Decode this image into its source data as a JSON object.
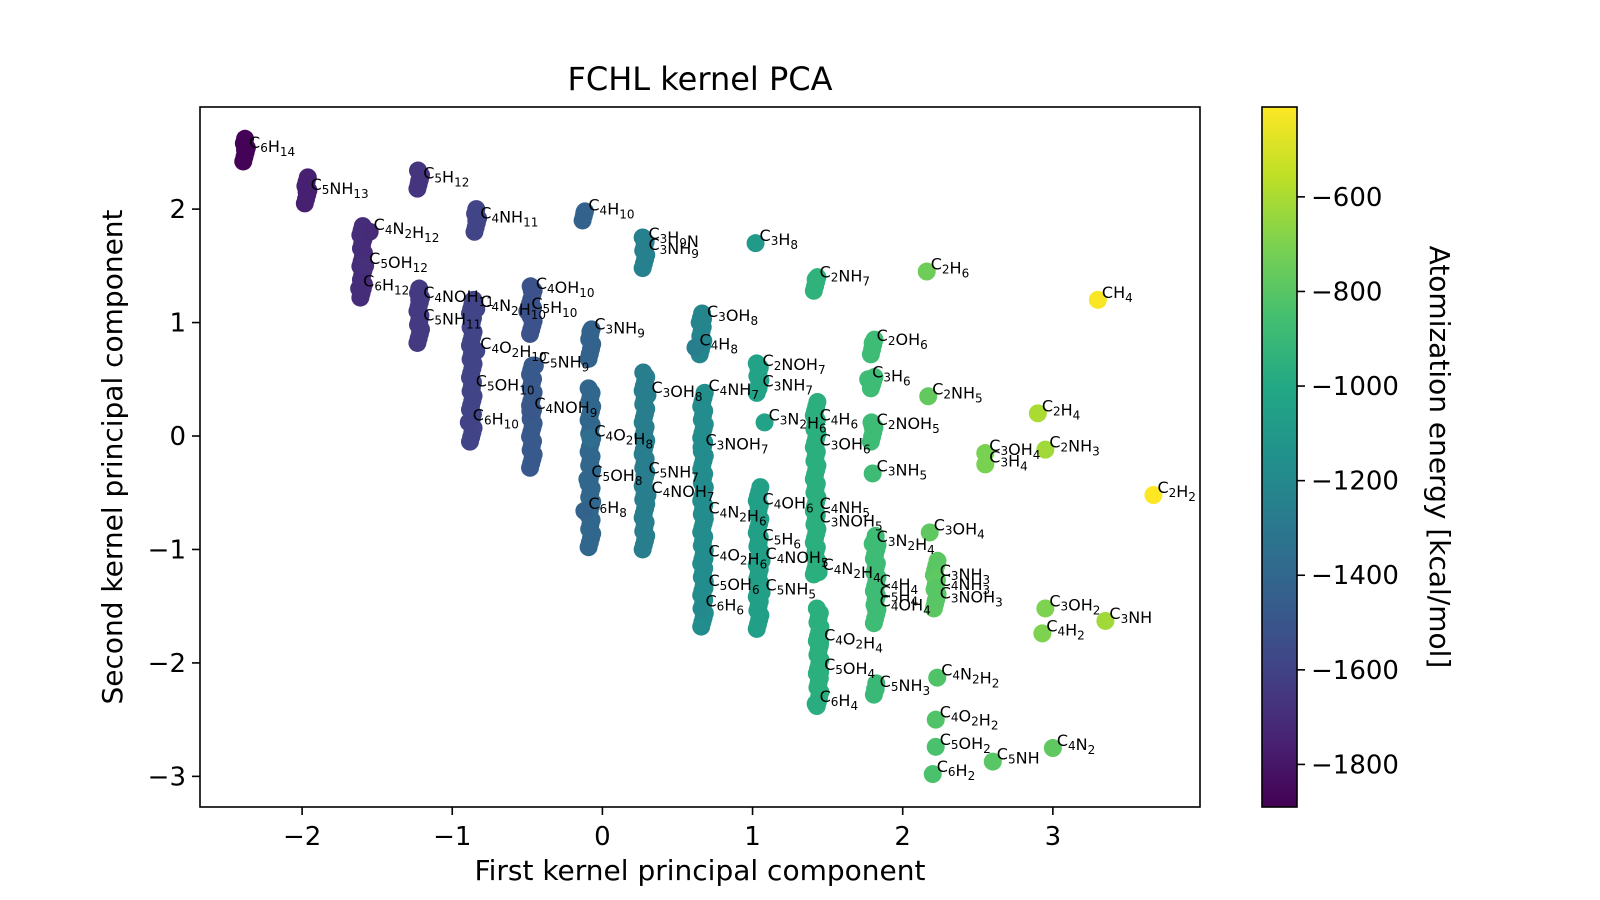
{
  "chart_data": {
    "type": "scatter",
    "title": "FCHL kernel PCA",
    "xlabel": "First kernel principal component",
    "ylabel": "Second kernel principal component",
    "xlim": [
      -2.68,
      3.98
    ],
    "ylim": [
      -3.27,
      2.9
    ],
    "x_ticks": [
      -2,
      -1,
      0,
      1,
      2,
      3
    ],
    "x_tick_labels": [
      "−2",
      "−1",
      "0",
      "1",
      "2",
      "3"
    ],
    "y_ticks": [
      -3,
      -2,
      -1,
      0,
      1,
      2
    ],
    "y_tick_labels": [
      "−3",
      "−2",
      "−1",
      "0",
      "1",
      "2"
    ],
    "grid": false,
    "colorbar": {
      "label": "Atomization energy [kcal/mol]",
      "colormap": "viridis",
      "range": [
        -1890,
        -410
      ],
      "ticks": [
        -1800,
        -1600,
        -1400,
        -1200,
        -1000,
        -800,
        -600
      ],
      "tick_labels": [
        "−1800",
        "−1600",
        "−1400",
        "−1200",
        "−1000",
        "−800",
        "−600"
      ]
    },
    "points": [
      {
        "label": "C6H14",
        "x": -2.38,
        "y": 2.52,
        "energy": -1880
      },
      {
        "label": "C5NH13",
        "x": -1.97,
        "y": 2.15,
        "energy": -1760
      },
      {
        "label": "C5H12",
        "x": -1.22,
        "y": 2.25,
        "energy": -1670
      },
      {
        "label": "C4N2H12",
        "x": -1.55,
        "y": 1.8,
        "energy": -1710
      },
      {
        "label": "C4NH11",
        "x": -0.84,
        "y": 1.9,
        "energy": -1590
      },
      {
        "label": "C4H10",
        "x": -0.12,
        "y": 1.97,
        "energy": -1420
      },
      {
        "label": "C5OH12",
        "x": -1.58,
        "y": 1.5,
        "energy": -1690
      },
      {
        "label": "C6H12",
        "x": -1.62,
        "y": 1.3,
        "energy": -1700
      },
      {
        "label": "C4NOH11",
        "x": -1.22,
        "y": 1.2,
        "energy": -1640
      },
      {
        "label": "C5NH11",
        "x": -1.22,
        "y": 1.0,
        "energy": -1640
      },
      {
        "label": "C4OH10",
        "x": -0.47,
        "y": 1.28,
        "energy": -1520
      },
      {
        "label": "C4N2H10",
        "x": -0.84,
        "y": 1.12,
        "energy": -1590
      },
      {
        "label": "C5H10",
        "x": -0.5,
        "y": 1.1,
        "energy": -1530
      },
      {
        "label": "C3H9N",
        "x": 0.28,
        "y": 1.72,
        "energy": -1250
      },
      {
        "label": "C3NH9",
        "x": 0.28,
        "y": 1.62,
        "energy": -1250
      },
      {
        "label": "C3H8",
        "x": 1.02,
        "y": 1.7,
        "energy": -1090
      },
      {
        "label": "C2NH7",
        "x": 1.42,
        "y": 1.38,
        "energy": -940
      },
      {
        "label": "C2H6",
        "x": 2.16,
        "y": 1.45,
        "energy": -740
      },
      {
        "label": "CH4",
        "x": 3.3,
        "y": 1.2,
        "energy": -420
      },
      {
        "label": "C3NH9",
        "x": -0.08,
        "y": 0.92,
        "energy": -1420
      },
      {
        "label": "C3OH8",
        "x": 0.67,
        "y": 1.03,
        "energy": -1220
      },
      {
        "label": "C4H8",
        "x": 0.62,
        "y": 0.78,
        "energy": -1260
      },
      {
        "label": "C4O2H10",
        "x": -0.84,
        "y": 0.75,
        "energy": -1590
      },
      {
        "label": "C5NH9",
        "x": -0.45,
        "y": 0.62,
        "energy": -1480
      },
      {
        "label": "C2OH6",
        "x": 1.8,
        "y": 0.82,
        "energy": -880
      },
      {
        "label": "C2NOH7",
        "x": 1.04,
        "y": 0.6,
        "energy": -1040
      },
      {
        "label": "C3NH7",
        "x": 1.04,
        "y": 0.42,
        "energy": -1040
      },
      {
        "label": "C4NH7",
        "x": 0.68,
        "y": 0.38,
        "energy": -1160
      },
      {
        "label": "C3OH8",
        "x": 0.3,
        "y": 0.36,
        "energy": -1260
      },
      {
        "label": "C5OH10",
        "x": -0.87,
        "y": 0.42,
        "energy": -1590
      },
      {
        "label": "C6H10",
        "x": -0.89,
        "y": 0.12,
        "energy": -1600
      },
      {
        "label": "C4NOH9",
        "x": -0.48,
        "y": 0.22,
        "energy": -1490
      },
      {
        "label": "C3H6",
        "x": 1.77,
        "y": 0.5,
        "energy": -880
      },
      {
        "label": "C2NH5",
        "x": 2.17,
        "y": 0.35,
        "energy": -770
      },
      {
        "label": "C2H4",
        "x": 2.9,
        "y": 0.2,
        "energy": -600
      },
      {
        "label": "C3N2H6",
        "x": 1.08,
        "y": 0.12,
        "energy": -1040
      },
      {
        "label": "C4H6",
        "x": 1.42,
        "y": 0.12,
        "energy": -960
      },
      {
        "label": "C2NOH5",
        "x": 1.8,
        "y": 0.08,
        "energy": -880
      },
      {
        "label": "C3OH6",
        "x": 1.42,
        "y": -0.1,
        "energy": -960
      },
      {
        "label": "C3NOH7",
        "x": 0.66,
        "y": -0.1,
        "energy": -1180
      },
      {
        "label": "C4O2H8",
        "x": -0.08,
        "y": -0.02,
        "energy": -1360
      },
      {
        "label": "C5NH7",
        "x": 0.28,
        "y": -0.35,
        "energy": -1260
      },
      {
        "label": "C3OH4",
        "x": 2.55,
        "y": -0.15,
        "energy": -710
      },
      {
        "label": "C3H4",
        "x": 2.55,
        "y": -0.25,
        "energy": -710
      },
      {
        "label": "C2NH3",
        "x": 2.95,
        "y": -0.12,
        "energy": -620
      },
      {
        "label": "C2H2",
        "x": 3.67,
        "y": -0.52,
        "energy": -400
      },
      {
        "label": "C3NH5",
        "x": 1.8,
        "y": -0.33,
        "energy": -880
      },
      {
        "label": "C5OH8",
        "x": -0.1,
        "y": -0.38,
        "energy": -1400
      },
      {
        "label": "C4NOH7",
        "x": 0.3,
        "y": -0.52,
        "energy": -1260
      },
      {
        "label": "C6H8",
        "x": -0.12,
        "y": -0.66,
        "energy": -1420
      },
      {
        "label": "C4OH6",
        "x": 1.04,
        "y": -0.62,
        "energy": -1060
      },
      {
        "label": "C4NH5",
        "x": 1.42,
        "y": -0.66,
        "energy": -960
      },
      {
        "label": "C4N2H6",
        "x": 0.68,
        "y": -0.7,
        "energy": -1180
      },
      {
        "label": "C3NOH5",
        "x": 1.42,
        "y": -0.78,
        "energy": -960
      },
      {
        "label": "C3OH4",
        "x": 2.18,
        "y": -0.85,
        "energy": -780
      },
      {
        "label": "C3N2H4",
        "x": 1.8,
        "y": -0.95,
        "energy": -880
      },
      {
        "label": "C5H6",
        "x": 1.04,
        "y": -0.94,
        "energy": -1060
      },
      {
        "label": "C4O2H6",
        "x": 0.68,
        "y": -1.08,
        "energy": -1180
      },
      {
        "label": "C4NOH5",
        "x": 1.06,
        "y": -1.1,
        "energy": -1060
      },
      {
        "label": "C4N2H4",
        "x": 1.44,
        "y": -1.2,
        "energy": -960
      },
      {
        "label": "C5OH6",
        "x": 0.68,
        "y": -1.34,
        "energy": -1180
      },
      {
        "label": "C5NH5",
        "x": 1.06,
        "y": -1.38,
        "energy": -1060
      },
      {
        "label": "C6H6",
        "x": 0.66,
        "y": -1.52,
        "energy": -1200
      },
      {
        "label": "C3NH3",
        "x": 2.22,
        "y": -1.25,
        "energy": -780
      },
      {
        "label": "C4NH3",
        "x": 2.22,
        "y": -1.34,
        "energy": -800
      },
      {
        "label": "C3NOH3",
        "x": 2.22,
        "y": -1.45,
        "energy": -800
      },
      {
        "label": "C4H4",
        "x": 1.82,
        "y": -1.34,
        "energy": -880
      },
      {
        "label": "C5H4",
        "x": 1.82,
        "y": -1.44,
        "energy": -880
      },
      {
        "label": "C4OH4",
        "x": 1.82,
        "y": -1.52,
        "energy": -880
      },
      {
        "label": "C3OH2",
        "x": 2.95,
        "y": -1.52,
        "energy": -700
      },
      {
        "label": "C3NH",
        "x": 3.35,
        "y": -1.63,
        "energy": -620
      },
      {
        "label": "C4H2",
        "x": 2.93,
        "y": -1.74,
        "energy": -700
      },
      {
        "label": "C4O2H4",
        "x": 1.45,
        "y": -1.82,
        "energy": -960
      },
      {
        "label": "C5OH4",
        "x": 1.45,
        "y": -2.08,
        "energy": -960
      },
      {
        "label": "C4N2H2",
        "x": 2.23,
        "y": -2.13,
        "energy": -820
      },
      {
        "label": "C5NH3",
        "x": 1.82,
        "y": -2.23,
        "energy": -900
      },
      {
        "label": "C6H4",
        "x": 1.42,
        "y": -2.36,
        "energy": -970
      },
      {
        "label": "C4O2H2",
        "x": 2.22,
        "y": -2.5,
        "energy": -820
      },
      {
        "label": "C5OH2",
        "x": 2.22,
        "y": -2.74,
        "energy": -840
      },
      {
        "label": "C5NH",
        "x": 2.6,
        "y": -2.87,
        "energy": -800
      },
      {
        "label": "C4N2",
        "x": 3.0,
        "y": -2.75,
        "energy": -780
      },
      {
        "label": "C6H2",
        "x": 2.2,
        "y": -2.98,
        "energy": -840
      }
    ],
    "clusters": [
      {
        "x": -2.38,
        "y0": 2.42,
        "y1": 2.62,
        "energy": -1880
      },
      {
        "x": -1.97,
        "y0": 2.05,
        "y1": 2.28,
        "energy": -1760
      },
      {
        "x": -1.22,
        "y0": 2.18,
        "y1": 2.34,
        "energy": -1670
      },
      {
        "x": -1.6,
        "y0": 1.22,
        "y1": 1.85,
        "energy": -1700
      },
      {
        "x": -1.22,
        "y0": 0.82,
        "y1": 1.3,
        "energy": -1640
      },
      {
        "x": -0.84,
        "y0": 1.8,
        "y1": 2.0,
        "energy": -1590
      },
      {
        "x": -0.87,
        "y0": -0.05,
        "y1": 1.2,
        "energy": -1590
      },
      {
        "x": -0.47,
        "y0": 0.9,
        "y1": 1.32,
        "energy": -1520
      },
      {
        "x": -0.47,
        "y0": -0.28,
        "y1": 0.62,
        "energy": -1480
      },
      {
        "x": -0.12,
        "y0": 1.9,
        "y1": 1.98,
        "energy": -1420
      },
      {
        "x": -0.08,
        "y0": 0.68,
        "y1": 0.94,
        "energy": -1420
      },
      {
        "x": -0.08,
        "y0": -0.98,
        "y1": 0.42,
        "energy": -1400
      },
      {
        "x": 0.28,
        "y0": 1.48,
        "y1": 1.75,
        "energy": -1250
      },
      {
        "x": 0.28,
        "y0": -1.0,
        "y1": 0.56,
        "energy": -1260
      },
      {
        "x": 0.66,
        "y0": 0.72,
        "y1": 1.08,
        "energy": -1220
      },
      {
        "x": 0.67,
        "y0": -1.68,
        "y1": 0.38,
        "energy": -1180
      },
      {
        "x": 1.04,
        "y0": 0.38,
        "y1": 0.64,
        "energy": -1040
      },
      {
        "x": 1.04,
        "y0": -1.7,
        "y1": -0.45,
        "energy": -1060
      },
      {
        "x": 1.42,
        "y0": 1.28,
        "y1": 1.4,
        "energy": -940
      },
      {
        "x": 1.42,
        "y0": -1.22,
        "y1": 0.3,
        "energy": -960
      },
      {
        "x": 1.44,
        "y0": -2.38,
        "y1": -1.52,
        "energy": -960
      },
      {
        "x": 1.8,
        "y0": 0.72,
        "y1": 0.85,
        "energy": -880
      },
      {
        "x": 1.8,
        "y0": 0.42,
        "y1": 0.52,
        "energy": -880
      },
      {
        "x": 1.8,
        "y0": -0.05,
        "y1": 0.12,
        "energy": -880
      },
      {
        "x": 1.82,
        "y0": -1.65,
        "y1": -0.88,
        "energy": -880
      },
      {
        "x": 1.82,
        "y0": -2.28,
        "y1": -2.18,
        "energy": -900
      },
      {
        "x": 2.22,
        "y0": -1.52,
        "y1": -1.1,
        "energy": -790
      }
    ]
  }
}
